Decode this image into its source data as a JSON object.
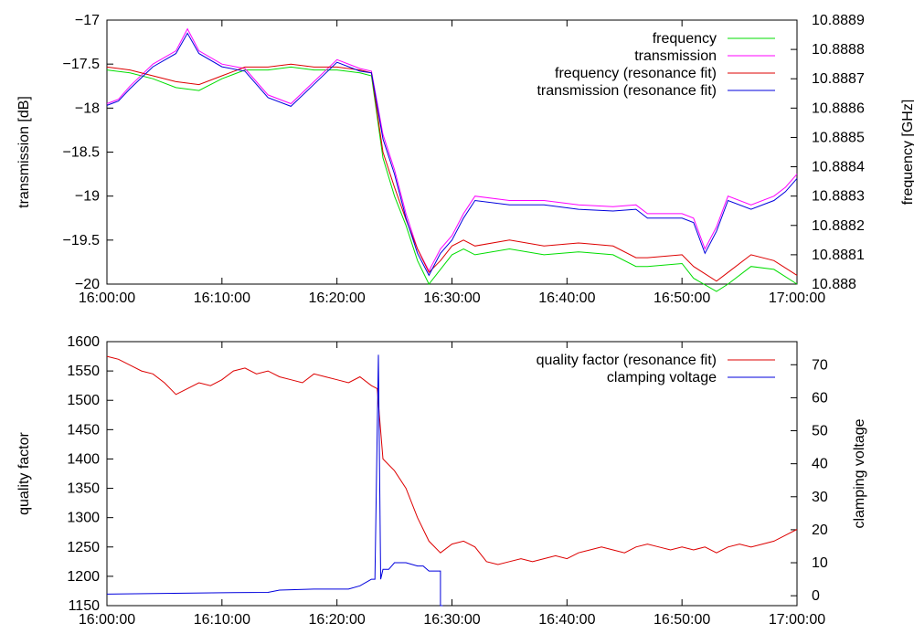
{
  "chart_data": [
    {
      "type": "line",
      "x_ticks": [
        "16:00:00",
        "16:10:00",
        "16:20:00",
        "16:30:00",
        "16:40:00",
        "16:50:00",
        "17:00:00"
      ],
      "xlim_minutes": [
        0,
        60
      ],
      "ylabel": "transmission [dB]",
      "ylim": [
        -20,
        -17
      ],
      "y_ticks": [
        "-20",
        "-19.5",
        "-19",
        "-18.5",
        "-18",
        "-17.5",
        "-17"
      ],
      "y_tick_values": [
        -20,
        -19.5,
        -19,
        -18.5,
        -18,
        -17.5,
        -17
      ],
      "y2label": "frequency [GHz]",
      "y2lim": [
        10.888,
        10.8889
      ],
      "y2_ticks": [
        "10.888",
        "10.8881",
        "10.8882",
        "10.8883",
        "10.8884",
        "10.8885",
        "10.8886",
        "10.8887",
        "10.8888",
        "10.8889"
      ],
      "y2_tick_values": [
        10.888,
        10.8881,
        10.8882,
        10.8883,
        10.8884,
        10.8885,
        10.8886,
        10.8887,
        10.8888,
        10.8889
      ],
      "legend_position": "top-right",
      "series": [
        {
          "name": "frequency",
          "axis": "y2",
          "color": "#00dd00",
          "x": [
            0,
            2,
            4,
            6,
            8,
            10,
            12,
            14,
            16,
            18,
            20,
            22,
            23,
            24,
            25,
            26,
            27,
            28,
            29,
            30,
            31,
            32,
            35,
            38,
            41,
            44,
            46,
            47,
            50,
            51,
            53,
            54,
            56,
            58,
            60
          ],
          "y": [
            10.88873,
            10.88872,
            10.8887,
            10.88867,
            10.88866,
            10.8887,
            10.88873,
            10.88873,
            10.88874,
            10.88873,
            10.88873,
            10.88872,
            10.88871,
            10.88843,
            10.8883,
            10.8882,
            10.88808,
            10.888,
            10.88805,
            10.8881,
            10.88812,
            10.8881,
            10.88812,
            10.8881,
            10.88811,
            10.8881,
            10.88806,
            10.88806,
            10.88807,
            10.88802,
            10.88797,
            10.888,
            10.88806,
            10.88805,
            10.888
          ]
        },
        {
          "name": "transmission",
          "axis": "y",
          "color": "#ff00ff",
          "x": [
            0,
            1,
            2,
            4,
            6,
            7,
            8,
            10,
            12,
            14,
            16,
            18,
            20,
            22,
            23,
            24,
            25,
            26,
            27,
            28,
            29,
            30,
            31,
            32,
            35,
            38,
            41,
            44,
            46,
            47,
            50,
            51,
            52,
            53,
            54,
            56,
            58,
            59,
            60
          ],
          "y": [
            -17.95,
            -17.9,
            -17.75,
            -17.5,
            -17.35,
            -17.1,
            -17.35,
            -17.5,
            -17.55,
            -17.85,
            -17.95,
            -17.7,
            -17.45,
            -17.55,
            -17.58,
            -18.3,
            -18.7,
            -19.2,
            -19.6,
            -19.85,
            -19.6,
            -19.45,
            -19.2,
            -19.0,
            -19.05,
            -19.05,
            -19.1,
            -19.12,
            -19.1,
            -19.2,
            -19.2,
            -19.25,
            -19.6,
            -19.35,
            -19.0,
            -19.1,
            -19.0,
            -18.9,
            -18.75
          ]
        },
        {
          "name": "frequency (resonance fit)",
          "axis": "y2",
          "color": "#dd0000",
          "x": [
            0,
            2,
            4,
            6,
            8,
            10,
            12,
            14,
            16,
            18,
            20,
            22,
            23,
            24,
            25,
            26,
            27,
            28,
            29,
            30,
            31,
            32,
            35,
            38,
            41,
            44,
            46,
            47,
            50,
            51,
            53,
            54,
            56,
            58,
            60
          ],
          "y": [
            10.88874,
            10.88873,
            10.88871,
            10.88869,
            10.88868,
            10.88871,
            10.88874,
            10.88874,
            10.88875,
            10.88874,
            10.88874,
            10.88873,
            10.88872,
            10.88845,
            10.88833,
            10.88822,
            10.88812,
            10.88804,
            10.88808,
            10.88813,
            10.88815,
            10.88813,
            10.88815,
            10.88813,
            10.88814,
            10.88813,
            10.88809,
            10.88809,
            10.8881,
            10.88806,
            10.88801,
            10.88804,
            10.8881,
            10.88808,
            10.88803
          ]
        },
        {
          "name": "transmission (resonance fit)",
          "axis": "y",
          "color": "#0000dd",
          "x": [
            0,
            1,
            2,
            4,
            6,
            7,
            8,
            10,
            12,
            14,
            16,
            18,
            20,
            22,
            23,
            24,
            25,
            26,
            27,
            28,
            29,
            30,
            31,
            32,
            35,
            38,
            41,
            44,
            46,
            47,
            50,
            51,
            52,
            53,
            54,
            56,
            58,
            59,
            60
          ],
          "y": [
            -17.97,
            -17.92,
            -17.78,
            -17.53,
            -17.38,
            -17.15,
            -17.38,
            -17.53,
            -17.58,
            -17.88,
            -17.98,
            -17.73,
            -17.48,
            -17.58,
            -17.6,
            -18.35,
            -18.75,
            -19.25,
            -19.65,
            -19.9,
            -19.65,
            -19.5,
            -19.25,
            -19.05,
            -19.1,
            -19.1,
            -19.15,
            -19.17,
            -19.15,
            -19.25,
            -19.25,
            -19.3,
            -19.65,
            -19.4,
            -19.05,
            -19.15,
            -19.05,
            -18.95,
            -18.8
          ]
        }
      ]
    },
    {
      "type": "line",
      "x_ticks": [
        "16:00:00",
        "16:10:00",
        "16:20:00",
        "16:30:00",
        "16:40:00",
        "16:50:00",
        "17:00:00"
      ],
      "xlim_minutes": [
        0,
        60
      ],
      "ylabel": "quality factor",
      "ylim": [
        1150,
        1600
      ],
      "y_ticks": [
        "1150",
        "1200",
        "1250",
        "1300",
        "1350",
        "1400",
        "1450",
        "1500",
        "1550",
        "1600"
      ],
      "y_tick_values": [
        1150,
        1200,
        1250,
        1300,
        1350,
        1400,
        1450,
        1500,
        1550,
        1600
      ],
      "y2label": "clamping voltage",
      "y2lim": [
        -3,
        77
      ],
      "y2_ticks": [
        "0",
        "10",
        "20",
        "30",
        "40",
        "50",
        "60",
        "70"
      ],
      "y2_tick_values": [
        0,
        10,
        20,
        30,
        40,
        50,
        60,
        70
      ],
      "legend_position": "top-right",
      "series": [
        {
          "name": "quality factor (resonance fit)",
          "axis": "y",
          "color": "#dd0000",
          "x": [
            0,
            1,
            2,
            3,
            4,
            5,
            6,
            7,
            8,
            9,
            10,
            11,
            12,
            13,
            14,
            15,
            16,
            17,
            18,
            19,
            20,
            21,
            22,
            23,
            23.5,
            24,
            25,
            26,
            27,
            28,
            29,
            30,
            31,
            32,
            33,
            34,
            35,
            36,
            37,
            38,
            39,
            40,
            41,
            42,
            43,
            44,
            45,
            46,
            47,
            48,
            49,
            50,
            51,
            52,
            53,
            54,
            55,
            56,
            57,
            58,
            59,
            60
          ],
          "y": [
            1575,
            1570,
            1560,
            1550,
            1545,
            1530,
            1510,
            1520,
            1530,
            1525,
            1535,
            1550,
            1555,
            1545,
            1550,
            1540,
            1535,
            1530,
            1545,
            1540,
            1535,
            1530,
            1540,
            1525,
            1520,
            1400,
            1380,
            1350,
            1300,
            1260,
            1240,
            1255,
            1260,
            1250,
            1225,
            1220,
            1225,
            1230,
            1225,
            1230,
            1235,
            1230,
            1240,
            1245,
            1250,
            1245,
            1240,
            1250,
            1255,
            1250,
            1245,
            1250,
            1245,
            1250,
            1240,
            1250,
            1255,
            1250,
            1255,
            1260,
            1270,
            1280
          ]
        },
        {
          "name": "clamping voltage",
          "axis": "y2",
          "color": "#0000dd",
          "x": [
            0,
            5,
            10,
            14,
            15,
            18,
            21,
            22,
            23,
            23.3,
            23.6,
            23.8,
            24,
            24.5,
            25,
            25.5,
            26,
            27,
            27.5,
            28,
            28.5,
            29,
            29,
            29.2
          ],
          "y": [
            0.5,
            0.7,
            0.9,
            1.0,
            1.7,
            2.0,
            2.0,
            3.0,
            5.0,
            5.0,
            73.0,
            5.0,
            8.0,
            8.0,
            10.0,
            10.0,
            10.0,
            9.0,
            9.0,
            7.5,
            7.5,
            7.5,
            -3.0,
            -3.0
          ]
        }
      ]
    }
  ]
}
